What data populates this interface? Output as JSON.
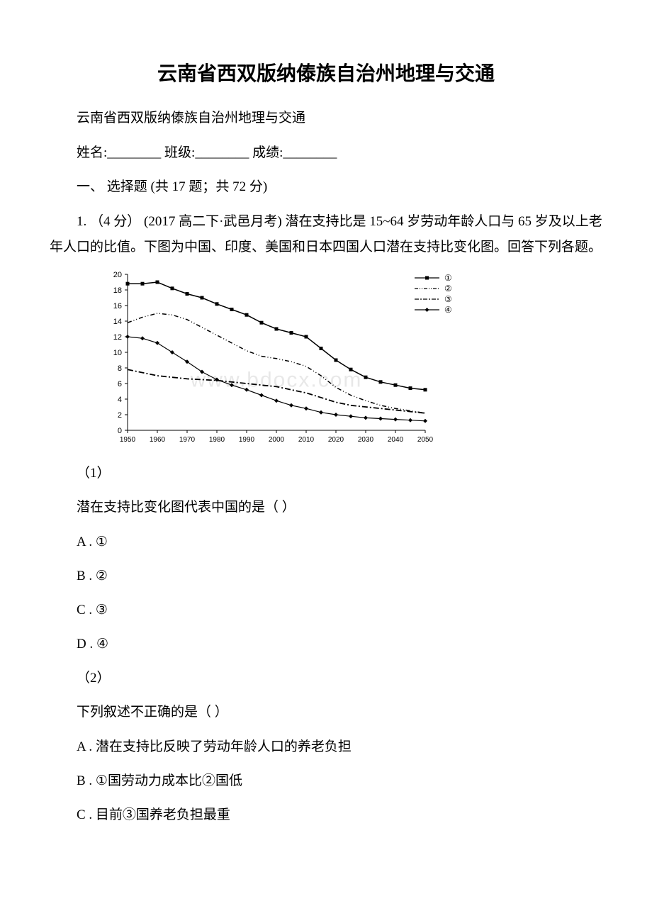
{
  "title": "云南省西双版纳傣族自治州地理与交通",
  "subtitle": "云南省西双版纳傣族自治州地理与交通",
  "info_labels": {
    "name": "姓名:",
    "class": "班级:",
    "score": "成绩:"
  },
  "section": "一、 选择题 (共 17 题；共 72 分)",
  "question1": {
    "number_prefix": "1. （4 分）",
    "source": "(2017 高二下·武邑月考)",
    "stem": "潜在支持比是 15~64 岁劳动年龄人口与 65 岁及以上老年人口的比值。下图为中国、印度、美国和日本四国人口潜在支持比变化图。回答下列各题。"
  },
  "chart": {
    "type": "line",
    "x_axis": {
      "ticks": [
        1950,
        1960,
        1970,
        1980,
        1990,
        2000,
        2010,
        2020,
        2030,
        2040,
        2050
      ],
      "labels": [
        "1950",
        "1960",
        "1970",
        "1980",
        "1990",
        "2000",
        "2010",
        "2020",
        "2030",
        "2040",
        "2050"
      ]
    },
    "y_axis": {
      "ticks": [
        0,
        2,
        4,
        6,
        8,
        10,
        12,
        14,
        16,
        18,
        20
      ],
      "min": 0,
      "max": 20
    },
    "legend": {
      "items": [
        "①",
        "②",
        "③",
        "④"
      ],
      "styles": [
        "solid-square",
        "dash-dot-dot",
        "dash-dot",
        "solid-diamond"
      ]
    },
    "series": {
      "s1": {
        "label": "①",
        "color": "#000000",
        "marker": "square",
        "line_style": "solid",
        "line_width": 1.5,
        "data": [
          {
            "x": 1950,
            "y": 18.8
          },
          {
            "x": 1955,
            "y": 18.8
          },
          {
            "x": 1960,
            "y": 19.0
          },
          {
            "x": 1965,
            "y": 18.2
          },
          {
            "x": 1970,
            "y": 17.5
          },
          {
            "x": 1975,
            "y": 17.0
          },
          {
            "x": 1980,
            "y": 16.2
          },
          {
            "x": 1985,
            "y": 15.5
          },
          {
            "x": 1990,
            "y": 14.8
          },
          {
            "x": 1995,
            "y": 13.8
          },
          {
            "x": 2000,
            "y": 13.0
          },
          {
            "x": 2005,
            "y": 12.5
          },
          {
            "x": 2010,
            "y": 12.0
          },
          {
            "x": 2015,
            "y": 10.5
          },
          {
            "x": 2020,
            "y": 9.0
          },
          {
            "x": 2025,
            "y": 7.8
          },
          {
            "x": 2030,
            "y": 6.8
          },
          {
            "x": 2035,
            "y": 6.2
          },
          {
            "x": 2040,
            "y": 5.8
          },
          {
            "x": 2045,
            "y": 5.4
          },
          {
            "x": 2050,
            "y": 5.2
          }
        ]
      },
      "s2": {
        "label": "②",
        "color": "#000000",
        "marker": "none",
        "line_style": "dash-dot-dot",
        "line_width": 1.5,
        "data": [
          {
            "x": 1950,
            "y": 13.8
          },
          {
            "x": 1955,
            "y": 14.5
          },
          {
            "x": 1960,
            "y": 15.0
          },
          {
            "x": 1965,
            "y": 14.8
          },
          {
            "x": 1970,
            "y": 14.2
          },
          {
            "x": 1975,
            "y": 13.2
          },
          {
            "x": 1980,
            "y": 12.2
          },
          {
            "x": 1985,
            "y": 11.2
          },
          {
            "x": 1990,
            "y": 10.2
          },
          {
            "x": 1995,
            "y": 9.5
          },
          {
            "x": 2000,
            "y": 9.2
          },
          {
            "x": 2005,
            "y": 8.8
          },
          {
            "x": 2010,
            "y": 8.2
          },
          {
            "x": 2015,
            "y": 7.0
          },
          {
            "x": 2020,
            "y": 5.5
          },
          {
            "x": 2025,
            "y": 4.5
          },
          {
            "x": 2030,
            "y": 3.8
          },
          {
            "x": 2035,
            "y": 3.2
          },
          {
            "x": 2040,
            "y": 2.8
          },
          {
            "x": 2045,
            "y": 2.5
          },
          {
            "x": 2050,
            "y": 2.2
          }
        ]
      },
      "s3": {
        "label": "③",
        "color": "#000000",
        "marker": "none",
        "line_style": "dash-dot",
        "line_width": 1.8,
        "data": [
          {
            "x": 1950,
            "y": 7.8
          },
          {
            "x": 1955,
            "y": 7.4
          },
          {
            "x": 1960,
            "y": 7.0
          },
          {
            "x": 1965,
            "y": 6.8
          },
          {
            "x": 1970,
            "y": 6.6
          },
          {
            "x": 1975,
            "y": 6.5
          },
          {
            "x": 1980,
            "y": 6.4
          },
          {
            "x": 1985,
            "y": 6.2
          },
          {
            "x": 1990,
            "y": 6.0
          },
          {
            "x": 1995,
            "y": 5.8
          },
          {
            "x": 2000,
            "y": 5.6
          },
          {
            "x": 2005,
            "y": 5.2
          },
          {
            "x": 2010,
            "y": 4.8
          },
          {
            "x": 2015,
            "y": 4.2
          },
          {
            "x": 2020,
            "y": 3.6
          },
          {
            "x": 2025,
            "y": 3.2
          },
          {
            "x": 2030,
            "y": 3.0
          },
          {
            "x": 2035,
            "y": 2.8
          },
          {
            "x": 2040,
            "y": 2.6
          },
          {
            "x": 2045,
            "y": 2.4
          },
          {
            "x": 2050,
            "y": 2.2
          }
        ]
      },
      "s4": {
        "label": "④",
        "color": "#000000",
        "marker": "diamond",
        "line_style": "solid",
        "line_width": 1.2,
        "data": [
          {
            "x": 1950,
            "y": 12.0
          },
          {
            "x": 1955,
            "y": 11.8
          },
          {
            "x": 1960,
            "y": 11.2
          },
          {
            "x": 1965,
            "y": 10.0
          },
          {
            "x": 1970,
            "y": 8.8
          },
          {
            "x": 1975,
            "y": 7.5
          },
          {
            "x": 1980,
            "y": 6.5
          },
          {
            "x": 1985,
            "y": 5.8
          },
          {
            "x": 1990,
            "y": 5.2
          },
          {
            "x": 1995,
            "y": 4.5
          },
          {
            "x": 2000,
            "y": 3.8
          },
          {
            "x": 2005,
            "y": 3.2
          },
          {
            "x": 2010,
            "y": 2.8
          },
          {
            "x": 2015,
            "y": 2.3
          },
          {
            "x": 2020,
            "y": 2.0
          },
          {
            "x": 2025,
            "y": 1.8
          },
          {
            "x": 2030,
            "y": 1.6
          },
          {
            "x": 2035,
            "y": 1.5
          },
          {
            "x": 2040,
            "y": 1.4
          },
          {
            "x": 2045,
            "y": 1.3
          },
          {
            "x": 2050,
            "y": 1.2
          }
        ]
      }
    },
    "background_color": "#ffffff",
    "axis_color": "#000000",
    "watermark": "www.bdocx.com"
  },
  "sub_q1": {
    "number": "（1）",
    "prompt": "潜在支持比变化图代表中国的是（ ）",
    "options": {
      "A": "A . ①",
      "B": "B . ②",
      "C": "C . ③",
      "D": "D . ④"
    }
  },
  "sub_q2": {
    "number": "（2）",
    "prompt": "下列叙述不正确的是（ ）",
    "options": {
      "A": "A . 潜在支持比反映了劳动年龄人口的养老负担",
      "B": "B . ①国劳动力成本比②国低",
      "C": "C . 目前③国养老负担最重"
    }
  }
}
